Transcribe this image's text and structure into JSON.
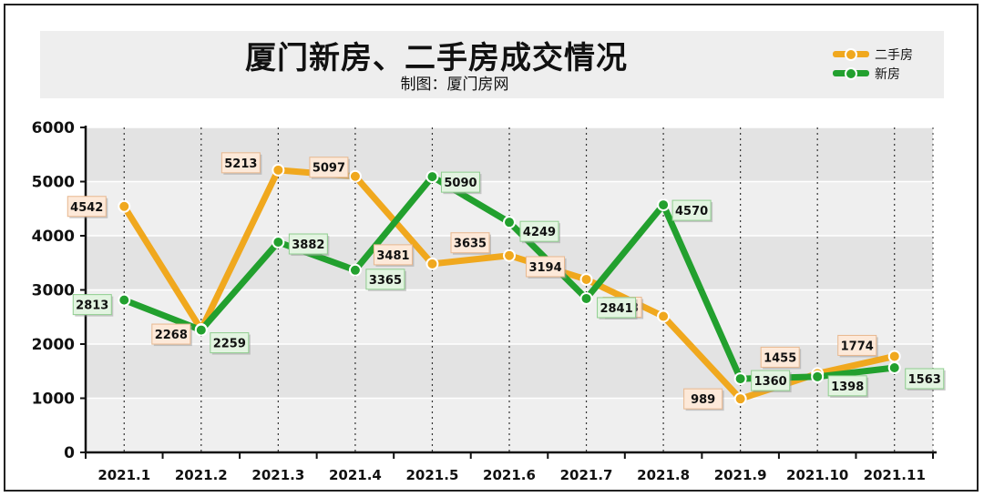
{
  "title": "厦门新房、二手房成交情况",
  "subtitle": "制图：厦门房网",
  "legend": [
    {
      "label": "二手房",
      "color": "#f0a81e"
    },
    {
      "label": "新房",
      "color": "#22a02e"
    }
  ],
  "chart_data": {
    "type": "line",
    "title": "厦门新房、二手房成交情况",
    "subtitle": "制图：厦门房网",
    "xlabel": "",
    "ylabel": "",
    "x": [
      "2021.1",
      "2021.2",
      "2021.3",
      "2021.4",
      "2021.5",
      "2021.6",
      "2021.7",
      "2021.8",
      "2021.9",
      "2021.10",
      "2021.11"
    ],
    "ylim": [
      0,
      6000
    ],
    "yticks": [
      0,
      1000,
      2000,
      3000,
      4000,
      5000,
      6000
    ],
    "grid": "horizontal bands, dotted vertical lines",
    "legend_position": "top-right",
    "series": [
      {
        "name": "二手房",
        "color": "#f0a81e",
        "label_bg": "#fde9d9",
        "values": [
          4542,
          2268,
          5213,
          5097,
          3481,
          3635,
          3194,
          2513,
          989,
          1455,
          1774
        ]
      },
      {
        "name": "新房",
        "color": "#22a02e",
        "label_bg": "#e3f4e1",
        "values": [
          2813,
          2259,
          3882,
          3365,
          5090,
          4249,
          2841,
          4570,
          1360,
          1398,
          1563
        ]
      }
    ]
  }
}
